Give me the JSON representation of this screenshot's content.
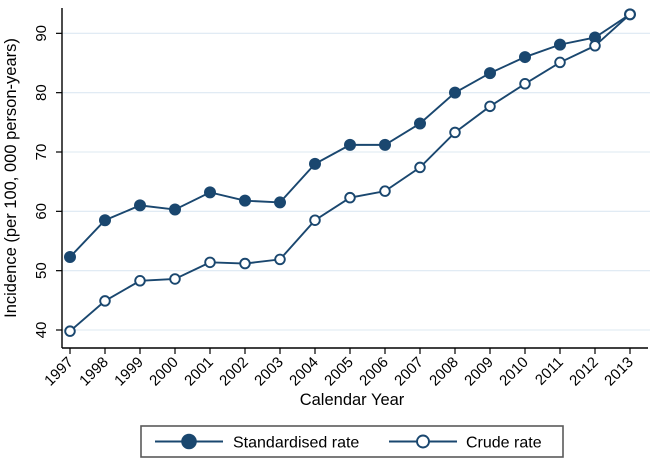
{
  "figure": {
    "accent_color": "#1a476f",
    "gridline_color": "#dde8f2",
    "axis_color": "#000000",
    "legend_border_color": "#5a5a5a",
    "background_color": "#ffffff"
  },
  "chart_data": {
    "type": "line",
    "title": "",
    "xlabel": "Calendar Year",
    "ylabel": "Incidence (per 100, 000 person-years)",
    "x": [
      1997,
      1998,
      1999,
      2000,
      2001,
      2002,
      2003,
      2004,
      2005,
      2006,
      2007,
      2008,
      2009,
      2010,
      2011,
      2012,
      2013
    ],
    "series": [
      {
        "name": "Standardised rate",
        "marker": "filled-circle",
        "values": [
          52.3,
          58.5,
          61.0,
          60.3,
          63.2,
          61.8,
          61.5,
          68.0,
          71.2,
          71.2,
          74.8,
          80.0,
          83.3,
          86.0,
          88.1,
          89.3,
          93.2
        ]
      },
      {
        "name": "Crude rate",
        "marker": "open-circle",
        "values": [
          39.8,
          44.9,
          48.3,
          48.6,
          51.4,
          51.2,
          51.9,
          58.5,
          62.3,
          63.4,
          67.4,
          73.3,
          77.7,
          81.5,
          85.1,
          87.9,
          93.2
        ]
      }
    ],
    "yticks": [
      40,
      50,
      60,
      70,
      80,
      90
    ],
    "ylim": [
      38,
      94
    ],
    "xlim": [
      1997,
      2013
    ],
    "grid": "horizontal",
    "legend_position": "bottom"
  }
}
